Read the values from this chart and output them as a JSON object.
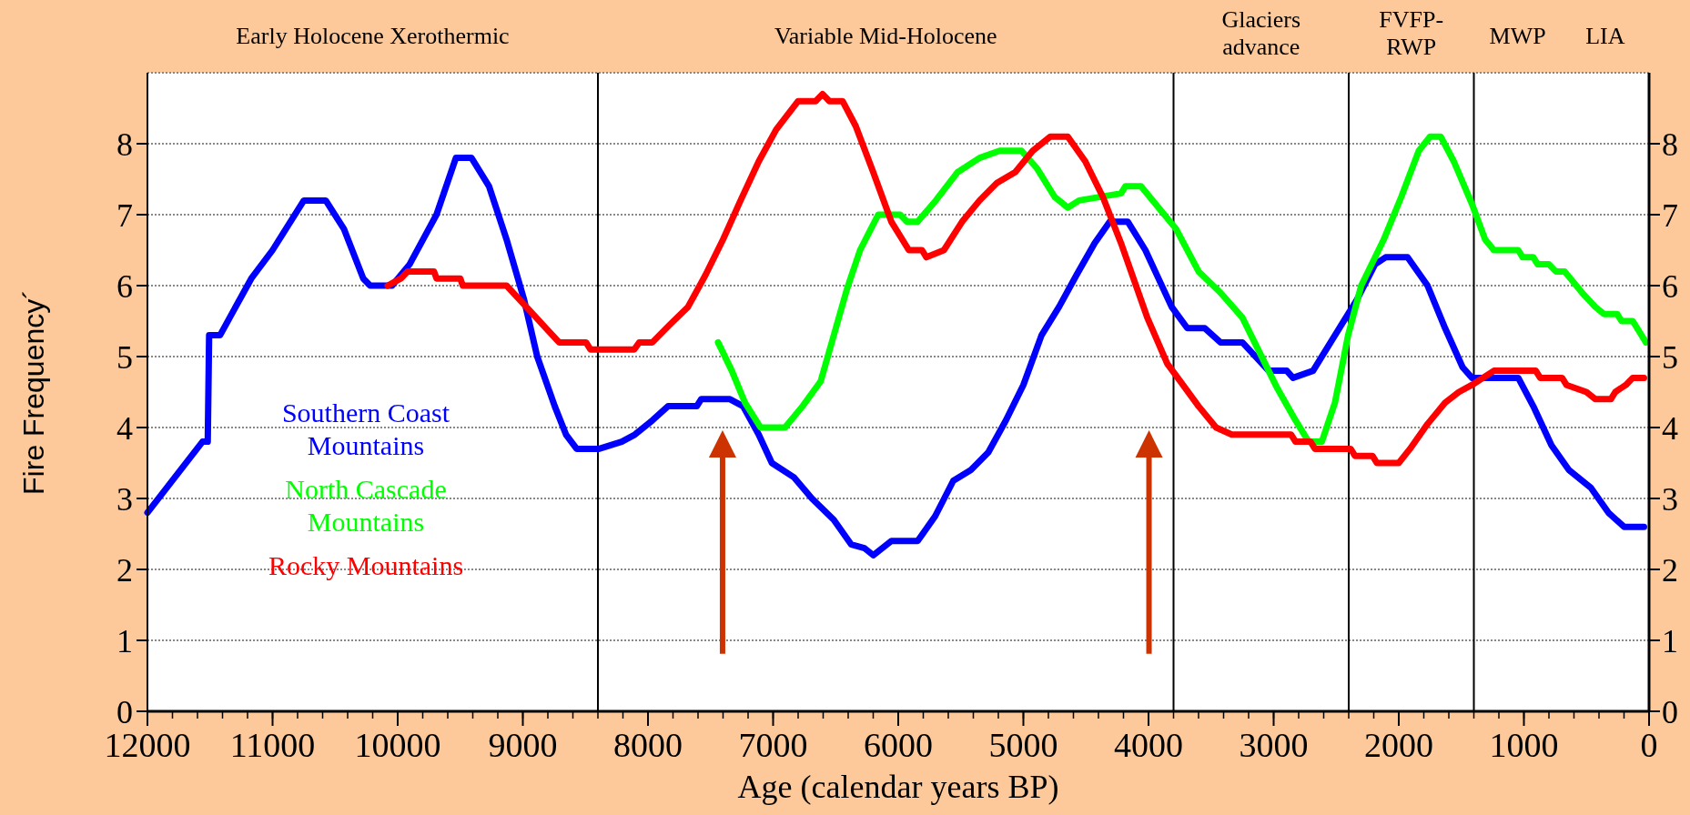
{
  "chart_data": {
    "type": "line",
    "xlabel": "Age (calendar years BP)",
    "ylabel": "Fire Frequency´",
    "xlim": [
      12000,
      0
    ],
    "xticks": [
      12000,
      11000,
      10000,
      9000,
      8000,
      7000,
      6000,
      5000,
      4000,
      3000,
      2000,
      1000,
      0
    ],
    "ylim": [
      0,
      9
    ],
    "yticks": [
      0,
      1,
      2,
      3,
      4,
      5,
      6,
      7,
      8
    ],
    "y2lim": [
      0,
      9
    ],
    "y2ticks": [
      0,
      1,
      2,
      3,
      4,
      5,
      6,
      7,
      8
    ],
    "grid": "y",
    "legend": "bottom left",
    "line_style": "solid",
    "marker": "none",
    "ref_lines": [
      {
        "axis": "x",
        "value": 8400,
        "color": "#000000"
      },
      {
        "axis": "x",
        "value": 3800,
        "color": "#000000"
      },
      {
        "axis": "x",
        "value": 2400,
        "color": "#000000"
      },
      {
        "axis": "x",
        "value": 1400,
        "color": "#000000"
      }
    ],
    "annotations": [
      "Early Holocene Xerothermic",
      "Variable Mid-Holocene",
      "Glaciers\nadvance",
      "FVFP-\nRWP",
      "MWP",
      "LIA"
    ],
    "series": [
      {
        "name": "Southern Coast Mountains",
        "color": "#0000ff",
        "x": [
          12000,
          11560,
          11518,
          11507,
          11420,
          11170,
          11000,
          10750,
          10575,
          10430,
          10275,
          10220,
          10045,
          9905,
          9690,
          9535,
          9410,
          9270,
          9130,
          8990,
          8885,
          8745,
          8655,
          8570,
          8390,
          8210,
          8105,
          7965,
          7840,
          7610,
          7575,
          7345,
          7240,
          7115,
          7010,
          6835,
          6690,
          6515,
          6375,
          6270,
          6200,
          6055,
          5845,
          5705,
          5560,
          5420,
          5280,
          5140,
          5000,
          4855,
          4715,
          4575,
          4430,
          4310,
          4165,
          4025,
          3815,
          3690,
          3550,
          3425,
          3250,
          3040,
          2895,
          2845,
          2685,
          2510,
          2335,
          2190,
          2105,
          1930,
          1770,
          1630,
          1490,
          1415,
          1045,
          925,
          780,
          640,
          465,
          325,
          200,
          40
        ],
        "values": [
          2.8,
          3.8,
          3.8,
          5.3,
          5.3,
          6.1,
          6.5,
          7.2,
          7.2,
          6.8,
          6.1,
          6.0,
          6.0,
          6.3,
          7.0,
          7.8,
          7.8,
          7.4,
          6.65,
          5.8,
          5.0,
          4.3,
          3.9,
          3.7,
          3.7,
          3.8,
          3.9,
          4.1,
          4.3,
          4.3,
          4.4,
          4.4,
          4.3,
          3.9,
          3.5,
          3.3,
          3.0,
          2.7,
          2.35,
          2.3,
          2.2,
          2.4,
          2.4,
          2.75,
          3.25,
          3.4,
          3.65,
          4.1,
          4.6,
          5.3,
          5.7,
          6.15,
          6.6,
          6.9,
          6.9,
          6.5,
          5.7,
          5.4,
          5.4,
          5.2,
          5.2,
          4.8,
          4.8,
          4.7,
          4.8,
          5.3,
          5.8,
          6.3,
          6.4,
          6.4,
          6.0,
          5.4,
          4.85,
          4.7,
          4.7,
          4.3,
          3.75,
          3.4,
          3.15,
          2.8,
          2.6,
          2.6
        ]
      },
      {
        "name": "North Cascade Mountains",
        "color": "#00ff00",
        "x": [
          7440,
          7330,
          7225,
          7100,
          6905,
          6765,
          6620,
          6515,
          6410,
          6305,
          6160,
          5985,
          5930,
          5845,
          5700,
          5525,
          5350,
          5190,
          5015,
          4890,
          4750,
          4645,
          4555,
          4220,
          4185,
          4060,
          3920,
          3780,
          3600,
          3425,
          3250,
          3110,
          2970,
          2825,
          2720,
          2615,
          2510,
          2405,
          2300,
          2120,
          1980,
          1840,
          1750,
          1665,
          1560,
          1415,
          1310,
          1240,
          1045,
          1010,
          925,
          890,
          800,
          745,
          675,
          535,
          430,
          360,
          255,
          220,
          130,
          25
        ],
        "values": [
          5.2,
          4.8,
          4.35,
          4.0,
          4.0,
          4.3,
          4.65,
          5.3,
          5.95,
          6.5,
          7.0,
          7.0,
          6.9,
          6.9,
          7.2,
          7.6,
          7.8,
          7.9,
          7.9,
          7.65,
          7.25,
          7.1,
          7.2,
          7.3,
          7.4,
          7.4,
          7.1,
          6.8,
          6.2,
          5.9,
          5.55,
          5.05,
          4.55,
          4.1,
          3.8,
          3.8,
          4.35,
          5.3,
          6.0,
          6.65,
          7.25,
          7.9,
          8.1,
          8.1,
          7.75,
          7.15,
          6.65,
          6.5,
          6.5,
          6.4,
          6.4,
          6.3,
          6.3,
          6.2,
          6.2,
          5.9,
          5.7,
          5.6,
          5.6,
          5.5,
          5.5,
          5.2
        ]
      },
      {
        "name": "Rocky Mountains",
        "color": "#ff0000",
        "x": [
          10080,
          9975,
          9920,
          9710,
          9690,
          9500,
          9480,
          9130,
          9025,
          8920,
          8815,
          8710,
          8495,
          8460,
          8110,
          8070,
          7965,
          7825,
          7680,
          7540,
          7400,
          7260,
          7115,
          6975,
          6800,
          6660,
          6605,
          6550,
          6445,
          6340,
          6200,
          6055,
          5915,
          5810,
          5775,
          5635,
          5490,
          5350,
          5210,
          5065,
          4925,
          4785,
          4645,
          4505,
          4365,
          4220,
          4010,
          3850,
          3745,
          3600,
          3460,
          3335,
          2860,
          2825,
          2705,
          2670,
          2385,
          2350,
          2210,
          2175,
          2000,
          1910,
          1770,
          1630,
          1520,
          1415,
          1240,
          905,
          870,
          695,
          660,
          500,
          430,
          305,
          270,
          185,
          130,
          40
        ],
        "values": [
          6.0,
          6.1,
          6.2,
          6.2,
          6.1,
          6.1,
          6.0,
          6.0,
          5.8,
          5.6,
          5.4,
          5.2,
          5.2,
          5.1,
          5.1,
          5.2,
          5.2,
          5.45,
          5.7,
          6.15,
          6.65,
          7.2,
          7.75,
          8.2,
          8.6,
          8.6,
          8.7,
          8.6,
          8.6,
          8.25,
          7.6,
          6.9,
          6.5,
          6.5,
          6.4,
          6.5,
          6.9,
          7.2,
          7.45,
          7.6,
          7.9,
          8.1,
          8.1,
          7.75,
          7.25,
          6.6,
          5.55,
          4.9,
          4.65,
          4.3,
          4.0,
          3.9,
          3.9,
          3.8,
          3.8,
          3.7,
          3.7,
          3.6,
          3.6,
          3.5,
          3.5,
          3.7,
          4.05,
          4.35,
          4.5,
          4.6,
          4.8,
          4.8,
          4.7,
          4.7,
          4.6,
          4.5,
          4.4,
          4.4,
          4.5,
          4.6,
          4.7,
          4.7
        ]
      }
    ]
  }
}
